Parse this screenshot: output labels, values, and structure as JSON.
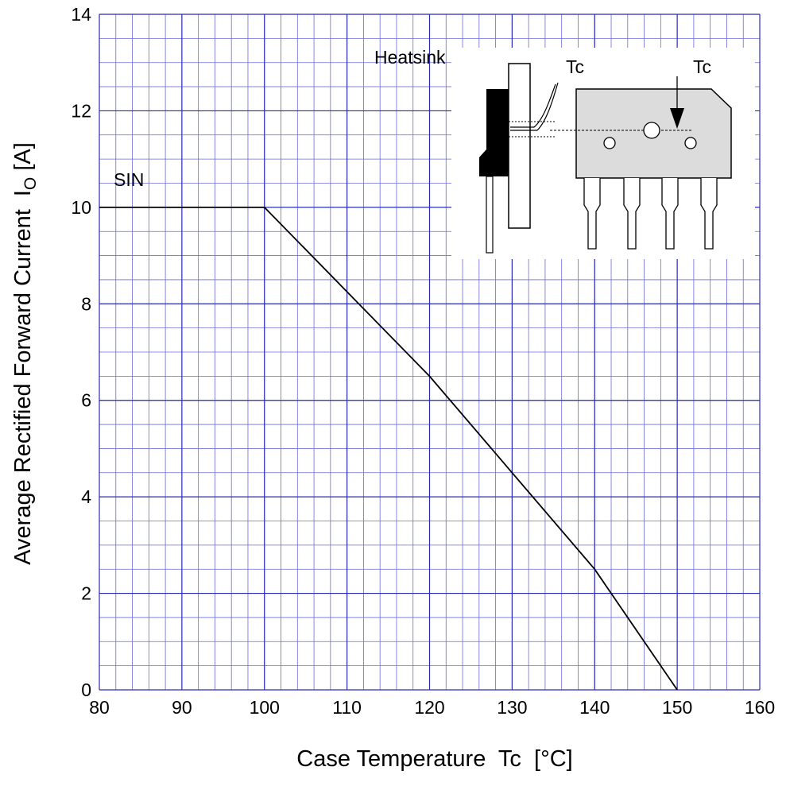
{
  "chart_data": {
    "type": "line",
    "xlabel": "Case Temperature  Tc  [°C]",
    "ylabel_main": "Average Rectified Forward Current  I",
    "ylabel_sub": "O",
    "ylabel_unit": " [A]",
    "xlim": [
      80,
      160
    ],
    "ylim": [
      0,
      14
    ],
    "x_ticks": [
      "80",
      "90",
      "100",
      "110",
      "120",
      "130",
      "140",
      "150",
      "160"
    ],
    "y_ticks": [
      "0",
      "2",
      "4",
      "6",
      "8",
      "10",
      "12",
      "14"
    ],
    "x_minor_step": 2,
    "y_minor_step": 0.5,
    "grid": true,
    "series": [
      {
        "name": "SIN",
        "x": [
          80,
          100,
          120,
          130,
          140,
          150
        ],
        "y": [
          10,
          10,
          6.5,
          4.5,
          2.5,
          0
        ]
      }
    ],
    "annotations": {
      "series_label": "SIN",
      "heatsink_label": "Heatsink",
      "tc_label_left": "Tc",
      "tc_label_right": "Tc"
    }
  }
}
